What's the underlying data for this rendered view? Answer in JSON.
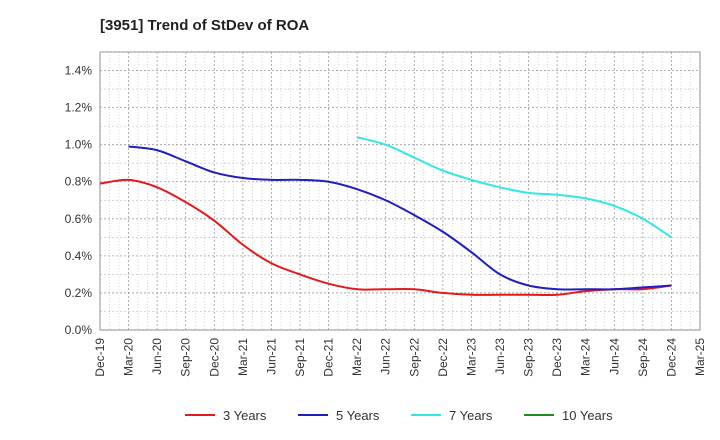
{
  "chart_data": {
    "type": "line",
    "title": "[3951]  Trend of StDev of ROA",
    "xlabel": "",
    "ylabel": "",
    "x_ticks": [
      "Dec-19",
      "Mar-20",
      "Jun-20",
      "Sep-20",
      "Dec-20",
      "Mar-21",
      "Jun-21",
      "Sep-21",
      "Dec-21",
      "Mar-22",
      "Jun-22",
      "Sep-22",
      "Dec-22",
      "Mar-23",
      "Jun-23",
      "Sep-23",
      "Dec-23",
      "Mar-24",
      "Jun-24",
      "Sep-24",
      "Dec-24",
      "Mar-25"
    ],
    "y_ticks": [
      "0.0%",
      "0.2%",
      "0.4%",
      "0.6%",
      "0.8%",
      "1.0%",
      "1.2%",
      "1.4%"
    ],
    "ylim": [
      0,
      1.5
    ],
    "y_unit": "%",
    "grid": true,
    "legend_position": "bottom",
    "series": [
      {
        "name": "3 Years",
        "color": "#e31a1c",
        "x": [
          "Dec-19",
          "Mar-20",
          "Jun-20",
          "Sep-20",
          "Dec-20",
          "Mar-21",
          "Jun-21",
          "Sep-21",
          "Dec-21",
          "Mar-22",
          "Jun-22",
          "Sep-22",
          "Dec-22",
          "Mar-23",
          "Jun-23",
          "Sep-23",
          "Dec-23",
          "Mar-24",
          "Jun-24",
          "Sep-24",
          "Dec-24"
        ],
        "values": [
          0.79,
          0.81,
          0.77,
          0.69,
          0.59,
          0.46,
          0.36,
          0.3,
          0.25,
          0.22,
          0.22,
          0.22,
          0.2,
          0.19,
          0.19,
          0.19,
          0.19,
          0.21,
          0.22,
          0.22,
          0.24
        ]
      },
      {
        "name": "5 Years",
        "color": "#1f1fbf",
        "x": [
          "Mar-20",
          "Jun-20",
          "Sep-20",
          "Dec-20",
          "Mar-21",
          "Jun-21",
          "Sep-21",
          "Dec-21",
          "Mar-22",
          "Jun-22",
          "Sep-22",
          "Dec-22",
          "Mar-23",
          "Jun-23",
          "Sep-23",
          "Dec-23",
          "Mar-24",
          "Jun-24",
          "Sep-24",
          "Dec-24"
        ],
        "values": [
          0.99,
          0.97,
          0.91,
          0.85,
          0.82,
          0.81,
          0.81,
          0.8,
          0.76,
          0.7,
          0.62,
          0.53,
          0.42,
          0.3,
          0.24,
          0.22,
          0.22,
          0.22,
          0.23,
          0.24
        ]
      },
      {
        "name": "7 Years",
        "color": "#33e6e6",
        "x": [
          "Mar-22",
          "Jun-22",
          "Sep-22",
          "Dec-22",
          "Mar-23",
          "Jun-23",
          "Sep-23",
          "Dec-23",
          "Mar-24",
          "Jun-24",
          "Sep-24",
          "Dec-24"
        ],
        "values": [
          1.04,
          1.0,
          0.93,
          0.86,
          0.81,
          0.77,
          0.74,
          0.73,
          0.71,
          0.67,
          0.6,
          0.5
        ]
      },
      {
        "name": "10 Years",
        "color": "#228b22",
        "x": [],
        "values": []
      }
    ]
  }
}
